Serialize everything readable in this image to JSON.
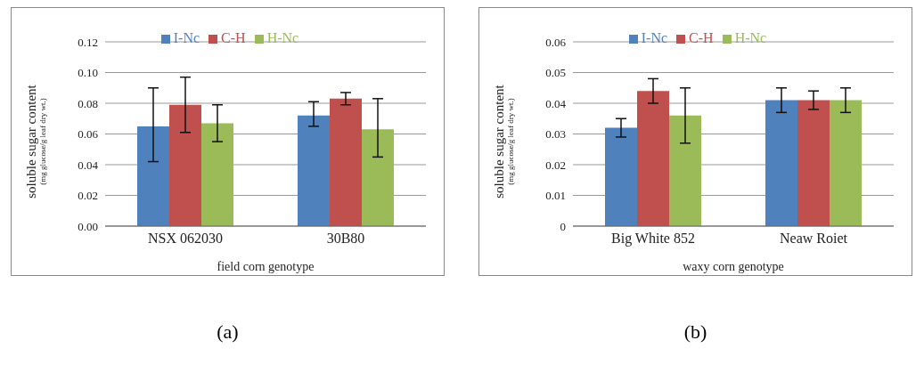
{
  "chart_data": [
    {
      "type": "bar",
      "categories": [
        "NSX 062030",
        "30B80"
      ],
      "xlabel": "field corn  genotype",
      "ylabel": "soluble sugar content\n(mg glucose/g leaf dry wt.)",
      "series": [
        {
          "name": "I-Nc",
          "color": "#4f81bd",
          "values": [
            0.065,
            0.072
          ],
          "errors": [
            [
              0.042,
              0.09
            ],
            [
              0.065,
              0.081
            ]
          ]
        },
        {
          "name": "C-H",
          "color": "#c0504d",
          "values": [
            0.079,
            0.083
          ],
          "errors": [
            [
              0.061,
              0.097
            ],
            [
              0.079,
              0.087
            ]
          ]
        },
        {
          "name": "H-Nc",
          "color": "#9bbb59",
          "values": [
            0.067,
            0.063
          ],
          "errors": [
            [
              0.055,
              0.079
            ],
            [
              0.045,
              0.083
            ]
          ]
        }
      ],
      "ylim": [
        0,
        0.12
      ],
      "yticks": [
        {
          "value": 0,
          "label": "0.00"
        },
        {
          "value": 0.02,
          "label": "0.02"
        },
        {
          "value": 0.04,
          "label": "0.04"
        },
        {
          "value": 0.06,
          "label": "0.06"
        },
        {
          "value": 0.08,
          "label": "0.08"
        },
        {
          "value": 0.1,
          "label": "0.10"
        },
        {
          "value": 0.12,
          "label": "0.12"
        }
      ],
      "grid": "y",
      "legend": "top",
      "annotations": [
        "(a)"
      ]
    },
    {
      "type": "bar",
      "categories": [
        "Big White 852",
        "Neaw Roiet"
      ],
      "xlabel": "waxy corn  genotype",
      "ylabel": "soluble sugar content\n(mg glucose/g leaf dry wt.)",
      "series": [
        {
          "name": "I-Nc",
          "color": "#4f81bd",
          "values": [
            0.032,
            0.041
          ],
          "errors": [
            [
              0.029,
              0.035
            ],
            [
              0.037,
              0.045
            ]
          ]
        },
        {
          "name": "C-H",
          "color": "#c0504d",
          "values": [
            0.044,
            0.041
          ],
          "errors": [
            [
              0.04,
              0.048
            ],
            [
              0.038,
              0.044
            ]
          ]
        },
        {
          "name": "H-Nc",
          "color": "#9bbb59",
          "values": [
            0.036,
            0.041
          ],
          "errors": [
            [
              0.027,
              0.045
            ],
            [
              0.037,
              0.045
            ]
          ]
        }
      ],
      "ylim": [
        0,
        0.06
      ],
      "yticks": [
        0,
        0.01,
        0.02,
        0.03,
        0.04,
        0.05,
        0.06
      ],
      "grid": "y",
      "legend": "top",
      "annotations": [
        "(b)"
      ]
    }
  ]
}
